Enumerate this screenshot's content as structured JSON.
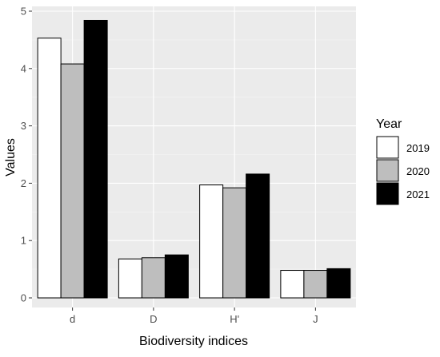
{
  "chart_data": {
    "type": "bar",
    "title": "",
    "xlabel": "Biodiversity indices",
    "ylabel": "Values",
    "categories": [
      "d",
      "D",
      "H'",
      "J"
    ],
    "series": [
      {
        "name": "2019",
        "values": [
          4.53,
          0.68,
          1.97,
          0.48
        ]
      },
      {
        "name": "2020",
        "values": [
          4.08,
          0.7,
          1.92,
          0.48
        ]
      },
      {
        "name": "2021",
        "values": [
          4.84,
          0.75,
          2.16,
          0.51
        ]
      }
    ],
    "ylim": [
      0,
      5
    ],
    "yticks": [
      "0",
      "1",
      "2",
      "3",
      "4",
      "5"
    ],
    "grid": true,
    "legend": {
      "title": "Year",
      "position": "right"
    },
    "colors": {
      "panel_background": "#ebebeb",
      "grid_major": "#ffffff",
      "grid_minor": "#f5f5f5",
      "bar_outline": "#000000",
      "series": [
        "#ffffff",
        "#bebebe",
        "#000000"
      ]
    }
  }
}
